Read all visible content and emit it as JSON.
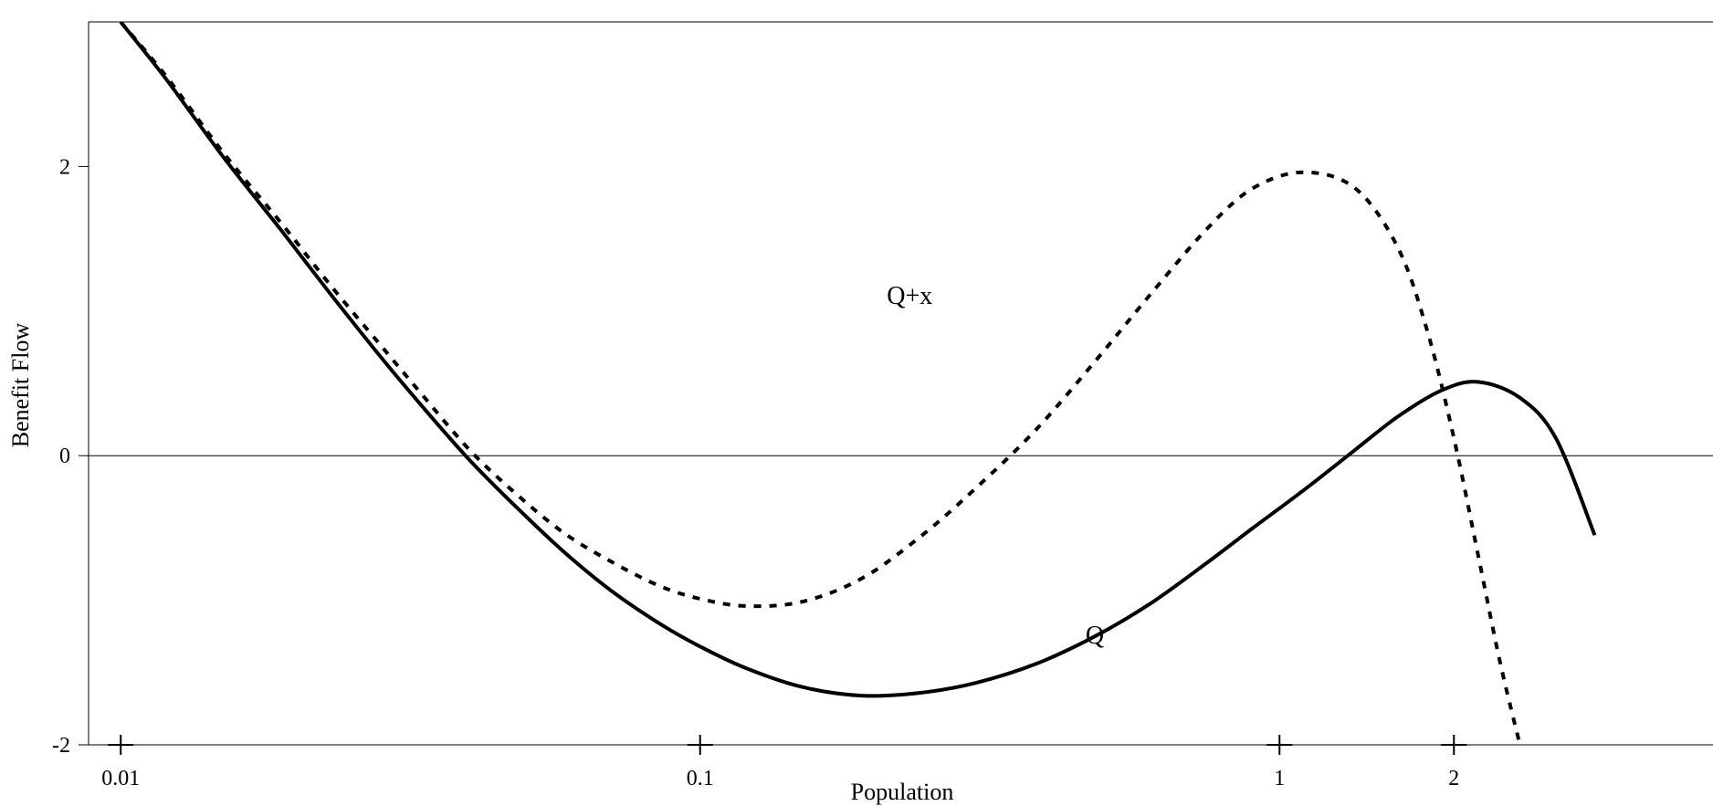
{
  "chart_data": {
    "type": "line",
    "title": "",
    "xlabel": "Population",
    "ylabel": "Benefit Flow",
    "x_scale": "log",
    "xlim": [
      0.0088,
      5.6
    ],
    "ylim": [
      -2,
      3
    ],
    "x_ticks": [
      {
        "value": 0.01,
        "label": "0.01"
      },
      {
        "value": 0.1,
        "label": "0.1"
      },
      {
        "value": 1,
        "label": "1"
      },
      {
        "value": 2,
        "label": "2"
      }
    ],
    "y_ticks": [
      {
        "value": -2,
        "label": "-2"
      },
      {
        "value": 0,
        "label": "0"
      },
      {
        "value": 2,
        "label": "2"
      }
    ],
    "zero_line": true,
    "grid": false,
    "legend": "none",
    "series": [
      {
        "name": "Q",
        "style": "solid",
        "color": "#000000",
        "x": [
          0.01,
          0.012,
          0.015,
          0.019,
          0.023,
          0.028,
          0.033,
          0.04,
          0.048,
          0.058,
          0.07,
          0.085,
          0.1,
          0.12,
          0.15,
          0.19,
          0.24,
          0.3,
          0.38,
          0.48,
          0.6,
          0.75,
          0.9,
          1.1,
          1.35,
          1.6,
          1.9,
          2.2,
          2.6,
          3.0,
          3.5
        ],
        "y": [
          3.0,
          2.6,
          2.07,
          1.55,
          1.12,
          0.69,
          0.35,
          -0.03,
          -0.35,
          -0.66,
          -0.93,
          -1.16,
          -1.32,
          -1.47,
          -1.6,
          -1.66,
          -1.64,
          -1.57,
          -1.44,
          -1.25,
          -1.02,
          -0.74,
          -0.5,
          -0.24,
          0.04,
          0.27,
          0.45,
          0.51,
          0.4,
          0.12,
          -0.55
        ]
      },
      {
        "name": "Q+x",
        "style": "dashed",
        "color": "#000000",
        "x": [
          0.01,
          0.012,
          0.015,
          0.019,
          0.023,
          0.028,
          0.033,
          0.04,
          0.048,
          0.058,
          0.07,
          0.085,
          0.1,
          0.12,
          0.15,
          0.19,
          0.24,
          0.3,
          0.38,
          0.48,
          0.6,
          0.75,
          0.9,
          1.1,
          1.35,
          1.6,
          1.8,
          2.0,
          2.2,
          2.4,
          2.6
        ],
        "y": [
          3.0,
          2.62,
          2.1,
          1.6,
          1.18,
          0.77,
          0.43,
          0.04,
          -0.26,
          -0.53,
          -0.73,
          -0.9,
          -0.99,
          -1.04,
          -1.01,
          -0.85,
          -0.56,
          -0.22,
          0.18,
          0.65,
          1.12,
          1.57,
          1.85,
          1.96,
          1.85,
          1.44,
          0.86,
          0.12,
          -0.68,
          -1.42,
          -2.0
        ]
      }
    ],
    "annotations": [
      {
        "text": "Q+x",
        "x": 0.23,
        "y": 1.05
      },
      {
        "text": "Q",
        "x": 0.48,
        "y": -1.3
      }
    ]
  }
}
